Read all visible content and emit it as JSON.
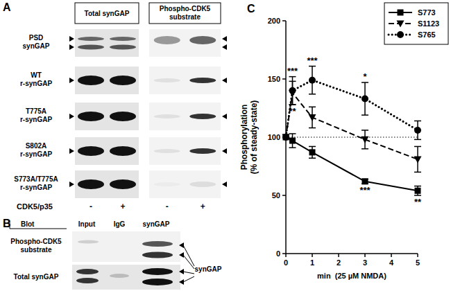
{
  "panel_a": {
    "label": "A",
    "column_headers": [
      "Total synGAP",
      "Phospho-CDK5 substrate"
    ],
    "rows": [
      "PSD synGAP",
      "WT r-synGAP",
      "T775A r-synGAP",
      "S802A r-synGAP",
      "S773A/T775A r-synGAP"
    ],
    "treatment": "CDK5/p35",
    "lanes": [
      "-",
      "+",
      "-",
      "+"
    ]
  },
  "panel_b": {
    "label": "B",
    "blot_header": "Blot",
    "columns": [
      "Input",
      "IgG",
      "synGAP"
    ],
    "rows": [
      "Phospho-CDK5 substrate",
      "Total synGAP"
    ],
    "arrow_label": "synGAP"
  },
  "chart_data": {
    "type": "line",
    "panel_label": "C",
    "x_label": "min  (25 µM NMDA)",
    "y_label": "Phosphorylation (% of steady-state)",
    "x": [
      0,
      0.25,
      1,
      3,
      5
    ],
    "xlim": [
      0,
      5
    ],
    "xticks": [
      0,
      1,
      2,
      3,
      4,
      5
    ],
    "ylim": [
      0,
      200
    ],
    "yticks": [
      0,
      50,
      100,
      150,
      200
    ],
    "reference_line": 100,
    "legend": "top-right",
    "series": [
      {
        "name": "S773",
        "color": "#000000",
        "marker": "square",
        "line_style": "solid",
        "values": [
          100,
          97,
          87,
          62,
          54
        ],
        "errors": [
          0,
          6,
          5,
          2,
          4
        ],
        "significance": [
          null,
          null,
          null,
          "***",
          "**"
        ]
      },
      {
        "name": "S1123",
        "color": "#000000",
        "marker": "triangle-down",
        "line_style": "dashed",
        "values": [
          100,
          138,
          117,
          98,
          81
        ],
        "errors": [
          0,
          10,
          9,
          8,
          11
        ],
        "significance": [
          null,
          "**",
          null,
          null,
          null
        ]
      },
      {
        "name": "S765",
        "color": "#000000",
        "marker": "circle",
        "line_style": "dotted",
        "values": [
          100,
          140,
          149,
          133,
          106
        ],
        "errors": [
          0,
          12,
          12,
          14,
          8
        ],
        "significance": [
          null,
          "***",
          "***",
          "*",
          null
        ]
      }
    ]
  }
}
